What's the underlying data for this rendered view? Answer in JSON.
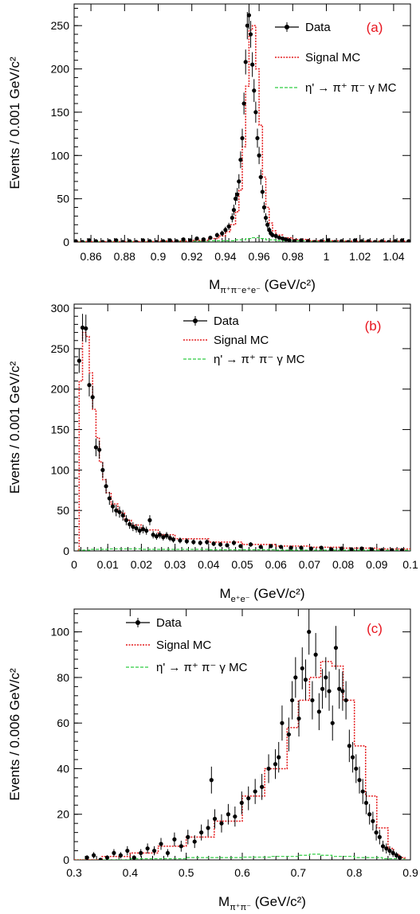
{
  "chart_data": [
    {
      "type": "scatter",
      "panel_label": "(a)",
      "xlabel_main": "M",
      "xlabel_sub": "π⁺π⁻e⁺e⁻",
      "xlabel_unit": " (GeV/c²)",
      "ylabel": "Events / 0.001 GeV/c²",
      "xlim": [
        0.85,
        1.05
      ],
      "ylim": [
        0,
        275
      ],
      "xticks": [
        0.86,
        0.88,
        0.9,
        0.92,
        0.94,
        0.96,
        0.98,
        1,
        1.02,
        1.04
      ],
      "xtick_labels": [
        "0.86",
        "0.88",
        "0.9",
        "0.92",
        "0.94",
        "0.96",
        "0.98",
        "1",
        "1.02",
        "1.04"
      ],
      "yticks": [
        0,
        50,
        100,
        150,
        200,
        250
      ],
      "ytick_labels": [
        "0",
        "50",
        "100",
        "150",
        "200",
        "250"
      ],
      "legend": [
        "Data",
        "Signal MC",
        "η' → π⁺ π⁻ γ MC"
      ],
      "series": [
        {
          "name": "Data",
          "x": [
            0.851,
            0.855,
            0.859,
            0.863,
            0.867,
            0.871,
            0.875,
            0.879,
            0.883,
            0.887,
            0.891,
            0.895,
            0.899,
            0.903,
            0.907,
            0.911,
            0.915,
            0.919,
            0.923,
            0.927,
            0.931,
            0.935,
            0.938,
            0.94,
            0.942,
            0.944,
            0.945,
            0.946,
            0.947,
            0.948,
            0.949,
            0.95,
            0.951,
            0.952,
            0.953,
            0.954,
            0.955,
            0.956,
            0.957,
            0.958,
            0.959,
            0.96,
            0.961,
            0.962,
            0.963,
            0.964,
            0.965,
            0.966,
            0.967,
            0.968,
            0.97,
            0.972,
            0.974,
            0.976,
            0.978,
            0.981,
            0.985,
            0.989,
            0.993,
            0.997,
            1.001,
            1.005,
            1.009,
            1.013,
            1.017,
            1.021,
            1.025,
            1.029,
            1.033,
            1.037,
            1.041,
            1.045,
            1.049
          ],
          "y": [
            1,
            0,
            2,
            1,
            0,
            1,
            2,
            0,
            1,
            0,
            2,
            1,
            0,
            1,
            2,
            1,
            3,
            2,
            4,
            3,
            5,
            8,
            10,
            14,
            18,
            28,
            37,
            50,
            55,
            70,
            95,
            120,
            160,
            208,
            250,
            262,
            240,
            205,
            175,
            150,
            120,
            100,
            75,
            58,
            40,
            28,
            20,
            14,
            10,
            8,
            7,
            5,
            4,
            3,
            2,
            1,
            2,
            1,
            0,
            1,
            2,
            0,
            1,
            0,
            2,
            1,
            1,
            0,
            1,
            0,
            1,
            2,
            1
          ],
          "yerr": [
            1,
            0,
            1.4,
            1,
            0,
            1,
            1.4,
            0,
            1,
            0,
            1.4,
            1,
            0,
            1,
            1.4,
            1,
            1.7,
            1.4,
            2,
            1.7,
            2.2,
            2.8,
            3.2,
            3.7,
            4.2,
            5.3,
            6.1,
            7.1,
            7.4,
            8.4,
            9.7,
            11,
            12.6,
            14.4,
            15.8,
            16.2,
            15.5,
            14.3,
            13.2,
            12.2,
            11,
            10,
            8.7,
            7.6,
            6.3,
            5.3,
            4.5,
            3.7,
            3.2,
            2.8,
            2.6,
            2.2,
            2,
            1.7,
            1.4,
            1,
            1.4,
            1,
            0,
            1,
            1.4,
            0,
            1,
            0,
            1.4,
            1,
            1,
            0,
            1,
            0,
            1,
            1.4,
            1
          ]
        },
        {
          "name": "Signal MC",
          "x": [
            0.85,
            0.9,
            0.92,
            0.93,
            0.936,
            0.94,
            0.943,
            0.946,
            0.948,
            0.95,
            0.952,
            0.954,
            0.956,
            0.958,
            0.96,
            0.962,
            0.964,
            0.966,
            0.968,
            0.97,
            0.974,
            0.98,
            0.99,
            1.01,
            1.05
          ],
          "y": [
            0.5,
            1,
            2,
            4,
            7,
            12,
            20,
            35,
            60,
            110,
            180,
            245,
            250,
            200,
            135,
            75,
            40,
            22,
            13,
            8,
            5,
            3,
            1.5,
            1,
            0.5
          ]
        },
        {
          "name": "η' → π⁺ π⁻ γ MC",
          "x": [
            0.85,
            0.9,
            0.93,
            0.945,
            0.952,
            0.956,
            0.96,
            0.964,
            0.97,
            0.99,
            1.05
          ],
          "y": [
            0.5,
            1,
            1.5,
            2.5,
            4,
            5,
            4,
            2.5,
            1.5,
            1,
            0.5
          ]
        }
      ]
    },
    {
      "type": "scatter",
      "panel_label": "(b)",
      "xlabel_main": "M",
      "xlabel_sub": "e⁺e⁻",
      "xlabel_unit": " (GeV/c²)",
      "ylabel": "Events / 0.001 GeV/c²",
      "xlim": [
        0,
        0.1
      ],
      "ylim": [
        0,
        305
      ],
      "xticks": [
        0,
        0.01,
        0.02,
        0.03,
        0.04,
        0.05,
        0.06,
        0.07,
        0.08,
        0.09,
        0.1
      ],
      "xtick_labels": [
        "0",
        "0.01",
        "0.02",
        "0.03",
        "0.04",
        "0.05",
        "0.06",
        "0.07",
        "0.08",
        "0.09",
        "0.1"
      ],
      "yticks": [
        0,
        50,
        100,
        150,
        200,
        250,
        300
      ],
      "ytick_labels": [
        "0",
        "50",
        "100",
        "150",
        "200",
        "250",
        "300"
      ],
      "legend": [
        "Data",
        "Signal MC",
        "η' → π⁺ π⁻ γ MC"
      ],
      "series": [
        {
          "name": "Data",
          "x": [
            0.0015,
            0.0025,
            0.0035,
            0.0045,
            0.0055,
            0.0065,
            0.0075,
            0.0085,
            0.0095,
            0.0105,
            0.0115,
            0.0125,
            0.0135,
            0.0145,
            0.0155,
            0.0165,
            0.0175,
            0.0185,
            0.0195,
            0.0205,
            0.0215,
            0.0225,
            0.0235,
            0.0245,
            0.0255,
            0.0265,
            0.0275,
            0.0285,
            0.0295,
            0.0315,
            0.0335,
            0.0355,
            0.0375,
            0.0395,
            0.0415,
            0.0435,
            0.0455,
            0.0475,
            0.0495,
            0.0525,
            0.0555,
            0.0585,
            0.0615,
            0.0645,
            0.0675,
            0.0705,
            0.0735,
            0.0765,
            0.0795,
            0.0825,
            0.0855,
            0.0885,
            0.0915,
            0.0945,
            0.0975
          ],
          "y": [
            235,
            276,
            275,
            205,
            190,
            128,
            125,
            100,
            80,
            65,
            55,
            50,
            48,
            44,
            38,
            33,
            30,
            28,
            25,
            27,
            25,
            38,
            20,
            18,
            20,
            17,
            19,
            16,
            14,
            13,
            12,
            11,
            10,
            11,
            9,
            8,
            7,
            10,
            6,
            8,
            5,
            6,
            5,
            4,
            4,
            3,
            4,
            2,
            3,
            2,
            3,
            2,
            1,
            1,
            1
          ],
          "yerr": [
            15,
            17,
            17,
            14,
            14,
            11,
            11,
            10,
            9,
            8,
            7.4,
            7.1,
            6.9,
            6.6,
            6.2,
            5.7,
            5.5,
            5.3,
            5,
            5.2,
            5,
            6.2,
            4.5,
            4.2,
            4.5,
            4.1,
            4.4,
            4,
            3.7,
            3.6,
            3.5,
            3.3,
            3.2,
            3.3,
            3,
            2.8,
            2.6,
            3.2,
            2.4,
            2.8,
            2.2,
            2.4,
            2.2,
            2,
            2,
            1.7,
            2,
            1.4,
            1.7,
            1.4,
            1.7,
            1.4,
            1,
            1,
            1
          ]
        },
        {
          "name": "Signal MC",
          "x": [
            0.001,
            0.0015,
            0.0025,
            0.0035,
            0.0045,
            0.0055,
            0.0065,
            0.0075,
            0.0085,
            0.0095,
            0.011,
            0.013,
            0.015,
            0.017,
            0.02,
            0.025,
            0.03,
            0.04,
            0.05,
            0.06,
            0.07,
            0.08,
            0.09,
            0.1
          ],
          "y": [
            0,
            210,
            270,
            265,
            220,
            175,
            140,
            110,
            88,
            72,
            58,
            47,
            38,
            32,
            26,
            20,
            15,
            11,
            8,
            6,
            4.5,
            3.5,
            2.5,
            2
          ]
        },
        {
          "name": "η' → π⁺ π⁻ γ MC",
          "x": [
            0.001,
            0.005,
            0.01,
            0.02,
            0.04,
            0.06,
            0.08,
            0.1
          ],
          "y": [
            1,
            2,
            2.5,
            2,
            1.5,
            1,
            1,
            0.5
          ]
        }
      ]
    },
    {
      "type": "scatter",
      "panel_label": "(c)",
      "xlabel_main": "M",
      "xlabel_sub": "π⁺π⁻",
      "xlabel_unit": " (GeV/c²)",
      "ylabel": "Events / 0.006 GeV/c²",
      "xlim": [
        0.3,
        0.9
      ],
      "ylim": [
        0,
        110
      ],
      "xticks": [
        0.3,
        0.4,
        0.5,
        0.6,
        0.7,
        0.8,
        0.9
      ],
      "xtick_labels": [
        "0.3",
        "0.4",
        "0.5",
        "0.6",
        "0.7",
        "0.8",
        "0.9"
      ],
      "yticks": [
        0,
        20,
        40,
        60,
        80,
        100
      ],
      "ytick_labels": [
        "0",
        "20",
        "40",
        "60",
        "80",
        "100"
      ],
      "legend": [
        "Data",
        "Signal MC",
        "η' → π⁺ π⁻ γ MC"
      ],
      "series": [
        {
          "name": "Data",
          "x": [
            0.323,
            0.335,
            0.347,
            0.359,
            0.371,
            0.383,
            0.395,
            0.407,
            0.419,
            0.431,
            0.443,
            0.455,
            0.467,
            0.479,
            0.491,
            0.503,
            0.515,
            0.527,
            0.539,
            0.545,
            0.551,
            0.563,
            0.575,
            0.587,
            0.599,
            0.611,
            0.623,
            0.635,
            0.647,
            0.659,
            0.665,
            0.671,
            0.683,
            0.689,
            0.695,
            0.701,
            0.707,
            0.713,
            0.719,
            0.725,
            0.731,
            0.737,
            0.743,
            0.749,
            0.755,
            0.761,
            0.767,
            0.773,
            0.779,
            0.785,
            0.791,
            0.797,
            0.803,
            0.809,
            0.815,
            0.821,
            0.827,
            0.833,
            0.839,
            0.845,
            0.851,
            0.857,
            0.863,
            0.869,
            0.875,
            0.881
          ],
          "y": [
            1,
            2,
            0,
            1,
            3,
            2,
            4,
            1,
            3,
            5,
            4,
            7,
            3,
            9,
            6,
            10,
            8,
            12,
            14,
            35,
            18,
            16,
            20,
            19,
            25,
            27,
            30,
            32,
            40,
            42,
            45,
            60,
            55,
            70,
            80,
            62,
            84,
            79,
            100,
            70,
            90,
            65,
            75,
            80,
            74,
            60,
            93,
            75,
            74,
            70,
            50,
            45,
            40,
            35,
            30,
            25,
            20,
            17,
            12,
            10,
            6,
            5,
            4,
            3,
            2,
            1
          ],
          "yerr": [
            1,
            1.4,
            0,
            1,
            1.7,
            1.4,
            2,
            1,
            1.7,
            2.2,
            2,
            2.6,
            1.7,
            3,
            2.4,
            3.2,
            2.8,
            3.5,
            3.7,
            5.9,
            4.2,
            4,
            4.5,
            4.4,
            5,
            5.2,
            5.5,
            5.7,
            6.3,
            6.5,
            6.7,
            7.7,
            7.4,
            8.4,
            8.9,
            7.9,
            9.2,
            8.9,
            10,
            8.4,
            9.5,
            8.1,
            8.7,
            8.9,
            8.6,
            7.7,
            9.6,
            8.7,
            8.6,
            8.4,
            7.1,
            6.7,
            6.3,
            5.9,
            5.5,
            5,
            4.5,
            4.1,
            3.5,
            3.2,
            2.4,
            2.2,
            2,
            1.7,
            1.4,
            1
          ]
        },
        {
          "name": "Signal MC",
          "x": [
            0.3,
            0.35,
            0.4,
            0.45,
            0.5,
            0.55,
            0.6,
            0.64,
            0.68,
            0.7,
            0.72,
            0.74,
            0.76,
            0.78,
            0.8,
            0.82,
            0.84,
            0.86,
            0.87,
            0.88,
            0.89
          ],
          "y": [
            0,
            1.5,
            3,
            6,
            10,
            17,
            28,
            40,
            58,
            70,
            80,
            87,
            85,
            70,
            50,
            28,
            14,
            5,
            2.5,
            1,
            0
          ]
        },
        {
          "name": "η' → π⁺ π⁻ γ MC",
          "x": [
            0.3,
            0.4,
            0.5,
            0.6,
            0.65,
            0.7,
            0.72,
            0.74,
            0.76,
            0.8,
            0.85,
            0.89
          ],
          "y": [
            0,
            0.5,
            1,
            1.2,
            1.5,
            2,
            2.5,
            2,
            1.5,
            1,
            0.5,
            0
          ]
        }
      ]
    }
  ],
  "colors": {
    "data": "#000000",
    "signal_mc": "#e41a1c",
    "background_mc": "#2ecc40",
    "panel_label": "#e8141e"
  }
}
